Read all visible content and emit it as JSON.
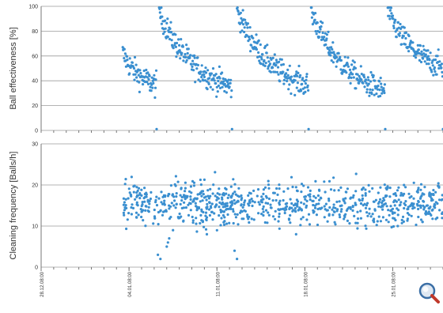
{
  "chart_data": [
    {
      "type": "scatter",
      "ylabel": "Ball effectiveness [%]",
      "ylim": [
        0,
        100
      ],
      "yticks": [
        "0",
        "20",
        "40",
        "60",
        "80",
        "100"
      ],
      "grid": true,
      "color": "#3a8fd0",
      "xlim_days": [
        0,
        32
      ],
      "cycles": [
        {
          "start_day": 6.5,
          "end_day": 9.2,
          "start_value": 62,
          "end_value": 38
        },
        {
          "start_day": 9.4,
          "end_day": 15.2,
          "start_value": 96,
          "end_value": 32
        },
        {
          "start_day": 15.6,
          "end_day": 21.3,
          "start_value": 97,
          "end_value": 33
        },
        {
          "start_day": 21.5,
          "end_day": 27.4,
          "start_value": 96,
          "end_value": 28
        },
        {
          "start_day": 27.6,
          "end_day": 32,
          "start_value": 97,
          "end_value": 50
        }
      ]
    },
    {
      "type": "scatter",
      "ylabel": "Cleaning frequency [Balls/h]",
      "ylim": [
        0,
        30
      ],
      "yticks": [
        "0",
        "10",
        "20",
        "30"
      ],
      "grid": true,
      "color": "#3a8fd0",
      "xlim_days": [
        0,
        32
      ],
      "mean_value": 15.5,
      "spread": 2.6,
      "range_days": [
        6.5,
        32
      ],
      "low_points": [
        {
          "day": 9.3,
          "value": 3
        },
        {
          "day": 9.5,
          "value": 2
        },
        {
          "day": 10.0,
          "value": 5
        },
        {
          "day": 10.2,
          "value": 7
        },
        {
          "day": 10.5,
          "value": 9
        },
        {
          "day": 10.1,
          "value": 6
        },
        {
          "day": 15.4,
          "value": 4
        },
        {
          "day": 15.6,
          "value": 2
        },
        {
          "day": 13.2,
          "value": 8
        },
        {
          "day": 20.3,
          "value": 8
        },
        {
          "day": 26.5,
          "value": 11
        },
        {
          "day": 28.4,
          "value": 10
        }
      ],
      "x_ticks": [
        "28.12.08:00",
        "04.01.08:00",
        "11.01.08:00",
        "18.01.08:00",
        "25.01.08:00"
      ],
      "x_tick_days": [
        0,
        7,
        14,
        21,
        28
      ]
    }
  ],
  "zoom_icon": "magnifier-icon"
}
